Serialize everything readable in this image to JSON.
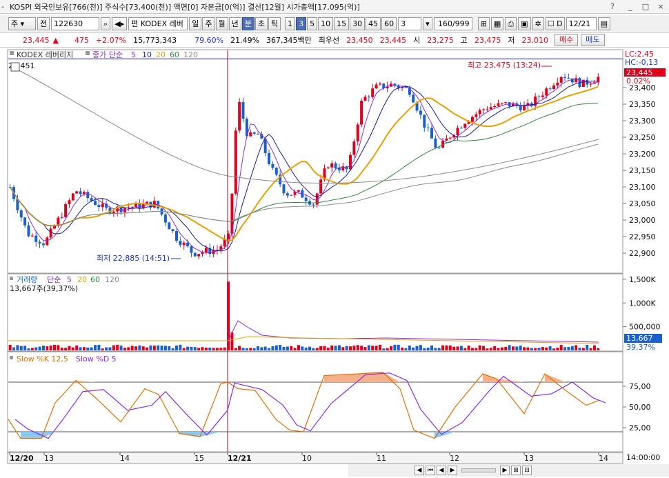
{
  "window": {
    "title": "KOSPI 외국인보유[766(천)] 주식수[73,400(천)] 액면[0] 자본금[0(억)] 결산[12월] 시가총액[17,095(억)]",
    "title_prefix": "-",
    "window_buttons": [
      "?",
      "_",
      "□",
      "×"
    ]
  },
  "toolbar": {
    "period_select": "주",
    "prev_label": "전",
    "code_input": "122630",
    "name_label": "편 KODEX 레버",
    "periods": [
      "일",
      "주",
      "월",
      "년",
      "분",
      "초",
      "틱"
    ],
    "selected_period": "분",
    "minutes": [
      "1",
      "3",
      "5",
      "10",
      "15",
      "30",
      "45",
      "60"
    ],
    "selected_minute": "3",
    "interval_value": "3",
    "count_value": "160/999",
    "date_checkbox_label": "D",
    "date_value": "12/21"
  },
  "quote": {
    "price": "23,445",
    "change_arrow": "▲",
    "change": "475",
    "change_pct": "+2.07%",
    "volume": "15,773,343",
    "volume_ratio": "79.60%",
    "turnover_ratio": "21.49%",
    "amount": "367,345백만",
    "best_ask_label": "최우선",
    "best_ask_1": "23,450",
    "best_ask_2": "23,445",
    "open_label": "시",
    "open": "23,275",
    "high_label": "고",
    "high": "23,475",
    "low_label": "저",
    "low": "23,010",
    "buy_label": "매수",
    "sell_label": "매도"
  },
  "price_panel": {
    "legend_name": "KODEX 레버리지",
    "legend_ma": "종가 단순",
    "ma_periods": [
      "5",
      "10",
      "20",
      "60",
      "120"
    ],
    "ma_colors": [
      "#8a2be2",
      "#1a1a8c",
      "#e6a000",
      "#2a8a3a",
      "#8a8a8a"
    ],
    "topleft_value": "23,451",
    "lc_label": "LC:2,45",
    "hc_label": "HC:-0,13",
    "current_price": "23,445",
    "current_pct": "0.02%",
    "high_annotation": "최고 23,475 (13:24)",
    "low_annotation": "최저 22,885 (14:51)",
    "yaxis": [
      "23,400",
      "23,350",
      "23,300",
      "23,250",
      "23,200",
      "23,150",
      "23,100",
      "23,050",
      "23,000",
      "22,950",
      "22,900"
    ]
  },
  "volume_panel": {
    "legend": "거래량",
    "legend_ma": "단순",
    "ma_periods": [
      "5",
      "20",
      "60",
      "120"
    ],
    "info": "13,667주(39,37%)",
    "yaxis": [
      "1,500K",
      "1,000K",
      "500,000"
    ],
    "current_volume": "13,667",
    "current_pct": "39,37%"
  },
  "stoch_panel": {
    "legend_k": "Slow %K 12,5",
    "legend_d": "Slow %D 5",
    "yaxis": [
      "75,00",
      "50,00",
      "25,00"
    ]
  },
  "xaxis": {
    "labels": [
      "12/20",
      "13",
      "14",
      "15",
      "12/21",
      "10",
      "11",
      "12",
      "13",
      "14"
    ],
    "time_label": "14:00:00"
  },
  "colors": {
    "up": "#e0001a",
    "down": "#1a5fd0",
    "ma5": "#8a2be2",
    "ma10": "#1a1a8c",
    "ma20": "#e6a000",
    "ma60": "#2a8a3a",
    "ma120": "#8a8a8a"
  },
  "scroll_buttons": [
    "◀",
    "⏮",
    "◀",
    "▶",
    "▶",
    "⊞",
    "⊟"
  ]
}
